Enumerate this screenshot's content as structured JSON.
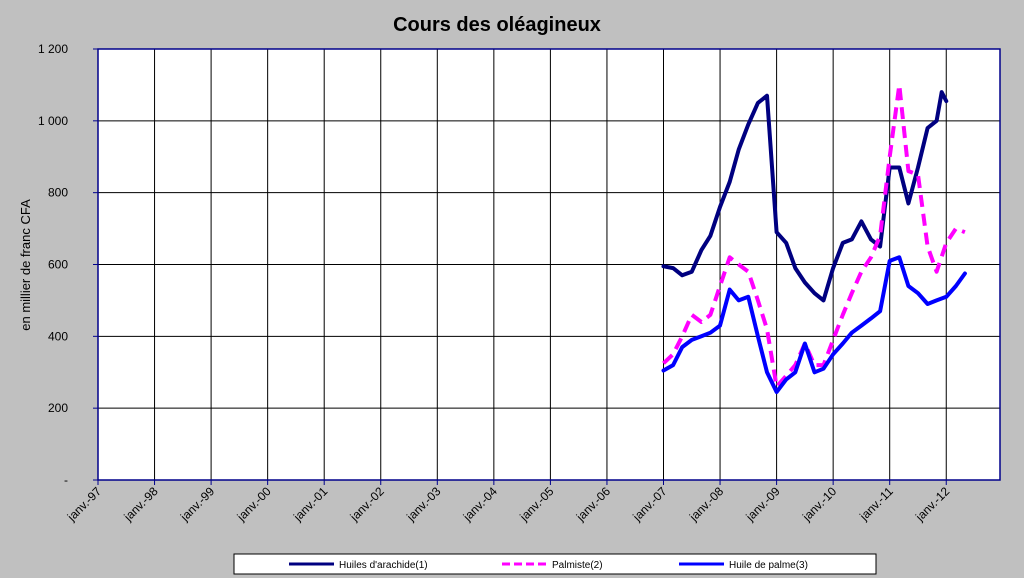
{
  "chart_data": {
    "type": "line",
    "title": "Cours des oléagineux",
    "xlabel": "",
    "ylabel": "en millier de franc CFA",
    "ylim": [
      0,
      1200
    ],
    "yticks": [
      0,
      200,
      400,
      600,
      800,
      1000,
      1200
    ],
    "ytick_labels": [
      "-",
      "200",
      "400",
      "600",
      "800",
      "1 000",
      "1 200"
    ],
    "x_categories": [
      "janv.-97",
      "janv.-98",
      "janv.-99",
      "janv.-00",
      "janv.-01",
      "janv.-02",
      "janv.-03",
      "janv.-04",
      "janv.-05",
      "janv.-06",
      "janv.-07",
      "janv.-08",
      "janv.-09",
      "janv.-10",
      "janv.-11",
      "janv.-12"
    ],
    "grid": true,
    "legend_position": "bottom",
    "plot_background": "#ffffff",
    "page_background": "#c0c0c0",
    "axis_color": "#00008b",
    "series": [
      {
        "name": "Huiles d'arachide(1)",
        "color": "#000080",
        "dash": "solid",
        "points": [
          [
            10.0,
            595
          ],
          [
            10.17,
            590
          ],
          [
            10.33,
            570
          ],
          [
            10.5,
            580
          ],
          [
            10.67,
            640
          ],
          [
            10.83,
            680
          ],
          [
            11.0,
            760
          ],
          [
            11.17,
            830
          ],
          [
            11.33,
            920
          ],
          [
            11.5,
            990
          ],
          [
            11.67,
            1050
          ],
          [
            11.83,
            1070
          ],
          [
            12.0,
            690
          ],
          [
            12.17,
            660
          ],
          [
            12.33,
            590
          ],
          [
            12.5,
            550
          ],
          [
            12.67,
            520
          ],
          [
            12.83,
            500
          ],
          [
            13.0,
            590
          ],
          [
            13.17,
            660
          ],
          [
            13.33,
            670
          ],
          [
            13.5,
            720
          ],
          [
            13.67,
            670
          ],
          [
            13.83,
            650
          ],
          [
            14.0,
            870
          ],
          [
            14.17,
            870
          ],
          [
            14.33,
            770
          ],
          [
            14.5,
            870
          ],
          [
            14.67,
            980
          ],
          [
            14.83,
            1000
          ],
          [
            14.92,
            1080
          ],
          [
            15.0,
            1055
          ]
        ]
      },
      {
        "name": "Palmiste(2)",
        "color": "#ff00ff",
        "dash": "dashed",
        "points": [
          [
            10.0,
            325
          ],
          [
            10.17,
            350
          ],
          [
            10.33,
            400
          ],
          [
            10.5,
            460
          ],
          [
            10.67,
            440
          ],
          [
            10.83,
            460
          ],
          [
            11.0,
            540
          ],
          [
            11.17,
            620
          ],
          [
            11.33,
            600
          ],
          [
            11.5,
            580
          ],
          [
            11.67,
            500
          ],
          [
            11.83,
            420
          ],
          [
            12.0,
            260
          ],
          [
            12.17,
            290
          ],
          [
            12.33,
            320
          ],
          [
            12.5,
            380
          ],
          [
            12.67,
            320
          ],
          [
            12.83,
            320
          ],
          [
            13.0,
            390
          ],
          [
            13.17,
            460
          ],
          [
            13.33,
            520
          ],
          [
            13.5,
            580
          ],
          [
            13.67,
            620
          ],
          [
            13.83,
            680
          ],
          [
            14.0,
            900
          ],
          [
            14.17,
            1100
          ],
          [
            14.33,
            860
          ],
          [
            14.5,
            850
          ],
          [
            14.67,
            650
          ],
          [
            14.83,
            580
          ],
          [
            15.0,
            660
          ],
          [
            15.17,
            700
          ],
          [
            15.33,
            690
          ]
        ]
      },
      {
        "name": "Huile de palme(3)",
        "color": "#0000ff",
        "dash": "solid",
        "points": [
          [
            10.0,
            305
          ],
          [
            10.17,
            320
          ],
          [
            10.33,
            370
          ],
          [
            10.5,
            390
          ],
          [
            10.67,
            400
          ],
          [
            10.83,
            410
          ],
          [
            11.0,
            430
          ],
          [
            11.17,
            530
          ],
          [
            11.33,
            500
          ],
          [
            11.5,
            510
          ],
          [
            11.67,
            400
          ],
          [
            11.83,
            300
          ],
          [
            12.0,
            245
          ],
          [
            12.17,
            280
          ],
          [
            12.33,
            300
          ],
          [
            12.5,
            380
          ],
          [
            12.67,
            300
          ],
          [
            12.83,
            310
          ],
          [
            13.0,
            350
          ],
          [
            13.17,
            380
          ],
          [
            13.33,
            410
          ],
          [
            13.5,
            430
          ],
          [
            13.67,
            450
          ],
          [
            13.83,
            470
          ],
          [
            14.0,
            610
          ],
          [
            14.17,
            620
          ],
          [
            14.33,
            540
          ],
          [
            14.5,
            520
          ],
          [
            14.67,
            490
          ],
          [
            14.83,
            500
          ],
          [
            15.0,
            510
          ],
          [
            15.17,
            540
          ],
          [
            15.33,
            575
          ]
        ]
      }
    ]
  }
}
